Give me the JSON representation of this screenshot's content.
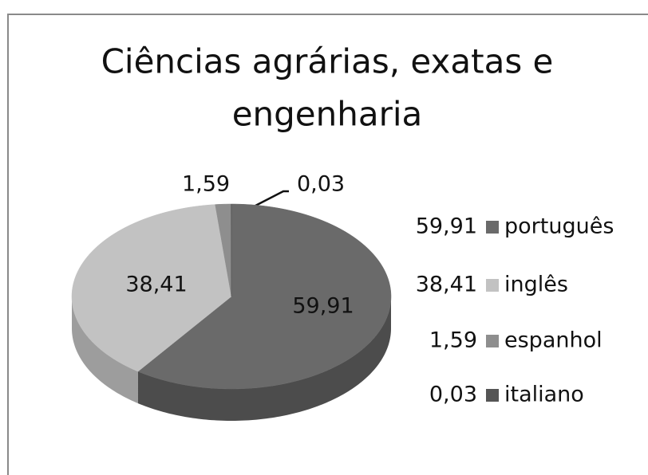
{
  "chart_data": {
    "type": "pie",
    "title": [
      "Ciências agrárias, exatas e",
      "engenharia"
    ],
    "categories": [
      "português",
      "inglês",
      "espanhol",
      "italiano"
    ],
    "values": [
      59.91,
      38.41,
      1.59,
      0.03
    ],
    "value_labels": [
      "59,91",
      "38,41",
      "1,59",
      "0,03"
    ],
    "colors": [
      "#6a6a6a",
      "#c2c2c2",
      "#8e8e8e",
      "#555555"
    ],
    "side_colors": [
      "#4c4c4c",
      "#9d9d9d",
      "#707070",
      "#3e3e3e"
    ],
    "legend": "right"
  }
}
